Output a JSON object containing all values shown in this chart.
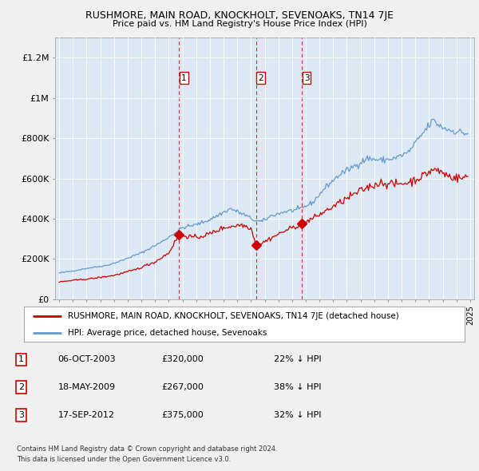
{
  "title": "RUSHMORE, MAIN ROAD, KNOCKHOLT, SEVENOAKS, TN14 7JE",
  "subtitle": "Price paid vs. HM Land Registry's House Price Index (HPI)",
  "ylabel_ticks": [
    "£0",
    "£200K",
    "£400K",
    "£600K",
    "£800K",
    "£1M",
    "£1.2M"
  ],
  "ylabel_values": [
    0,
    200000,
    400000,
    600000,
    800000,
    1000000,
    1200000
  ],
  "ylim": [
    0,
    1300000
  ],
  "xlim_start": 1994.7,
  "xlim_end": 2025.3,
  "sale_years": [
    2003.75,
    2009.375,
    2012.72
  ],
  "sale_prices": [
    320000,
    267000,
    375000
  ],
  "sale_labels": [
    "1",
    "2",
    "3"
  ],
  "table_rows": [
    [
      "1",
      "06-OCT-2003",
      "£320,000",
      "22% ↓ HPI"
    ],
    [
      "2",
      "18-MAY-2009",
      "£267,000",
      "38% ↓ HPI"
    ],
    [
      "3",
      "17-SEP-2012",
      "£375,000",
      "32% ↓ HPI"
    ]
  ],
  "legend_property": "RUSHMORE, MAIN ROAD, KNOCKHOLT, SEVENOAKS, TN14 7JE (detached house)",
  "legend_hpi": "HPI: Average price, detached house, Sevenoaks",
  "footer1": "Contains HM Land Registry data © Crown copyright and database right 2024.",
  "footer2": "This data is licensed under the Open Government Licence v3.0.",
  "property_color": "#cc0000",
  "hpi_color": "#6699cc",
  "vline_color": "#cc0000",
  "background_color": "#f0f0f0",
  "plot_bg_color": "#dce9f5",
  "grid_color": "#ffffff",
  "noise_scale_hpi": 0.012,
  "noise_scale_prop": 0.018,
  "hpi_anchors": {
    "1995.0": 130000,
    "1996.0": 140000,
    "1997.0": 153000,
    "1998.5": 168000,
    "1999.5": 190000,
    "2001.0": 230000,
    "2002.5": 285000,
    "2004.0": 355000,
    "2005.0": 370000,
    "2006.0": 395000,
    "2007.5": 450000,
    "2008.5": 420000,
    "2009.3": 390000,
    "2009.8": 385000,
    "2010.5": 415000,
    "2011.5": 435000,
    "2012.5": 445000,
    "2013.5": 480000,
    "2014.5": 560000,
    "2015.5": 620000,
    "2016.5": 660000,
    "2017.5": 700000,
    "2018.5": 690000,
    "2019.5": 700000,
    "2020.5": 730000,
    "2021.5": 820000,
    "2022.3": 890000,
    "2022.8": 860000,
    "2023.5": 840000,
    "2024.3": 830000,
    "2024.9": 820000
  },
  "prop_anchors": {
    "1995.0": 85000,
    "1996.0": 93000,
    "1997.5": 103000,
    "1999.0": 118000,
    "2000.5": 145000,
    "2002.0": 185000,
    "2003.0": 230000,
    "2003.75": 320000,
    "2005.0": 305000,
    "2006.0": 325000,
    "2007.0": 355000,
    "2008.3": 370000,
    "2009.0": 355000,
    "2009.375": 267000,
    "2009.7": 275000,
    "2010.5": 305000,
    "2011.5": 340000,
    "2012.72": 375000,
    "2013.5": 400000,
    "2014.5": 440000,
    "2015.5": 480000,
    "2016.5": 520000,
    "2017.5": 555000,
    "2018.5": 580000,
    "2019.5": 570000,
    "2020.5": 580000,
    "2021.5": 610000,
    "2022.3": 645000,
    "2022.8": 635000,
    "2023.5": 610000,
    "2024.3": 600000,
    "2024.9": 610000
  }
}
